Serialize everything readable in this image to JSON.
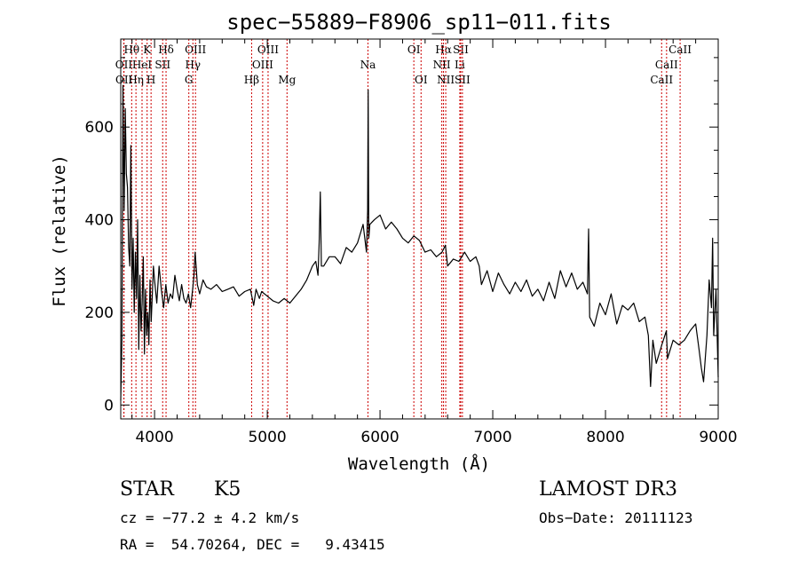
{
  "chart_data": {
    "type": "line",
    "title": "spec−55889−F8906_sp11−011.fits",
    "xlabel": "Wavelength (Å)",
    "ylabel": "Flux (relative)",
    "xlim": [
      3700,
      9000
    ],
    "ylim": [
      -30,
      790
    ],
    "x_ticks": [
      4000,
      5000,
      6000,
      7000,
      8000,
      9000
    ],
    "y_ticks": [
      0,
      200,
      400,
      600
    ],
    "grid": false,
    "legend": "none",
    "series": [
      {
        "x": [
          3700,
          3710,
          3720,
          3730,
          3740,
          3750,
          3760,
          3770,
          3780,
          3790,
          3800,
          3810,
          3820,
          3830,
          3840,
          3850,
          3860,
          3870,
          3880,
          3890,
          3900,
          3910,
          3920,
          3930,
          3940,
          3950,
          3960,
          3970,
          3980,
          3990,
          4000,
          4020,
          4040,
          4060,
          4080,
          4100,
          4120,
          4140,
          4160,
          4180,
          4200,
          4220,
          4240,
          4260,
          4280,
          4300,
          4320,
          4340,
          4350,
          4360,
          4380,
          4400,
          4430,
          4460,
          4500,
          4550,
          4600,
          4650,
          4700,
          4750,
          4800,
          4850,
          4880,
          4900,
          4930,
          4950,
          5000,
          5050,
          5100,
          5150,
          5200,
          5250,
          5300,
          5350,
          5400,
          5430,
          5450,
          5460,
          5470,
          5480,
          5500,
          5550,
          5600,
          5650,
          5700,
          5750,
          5800,
          5850,
          5880,
          5890,
          5895,
          5900,
          5910,
          5950,
          6000,
          6050,
          6100,
          6150,
          6200,
          6250,
          6300,
          6350,
          6400,
          6450,
          6500,
          6550,
          6580,
          6600,
          6650,
          6700,
          6750,
          6800,
          6850,
          6880,
          6900,
          6950,
          7000,
          7050,
          7100,
          7150,
          7200,
          7250,
          7300,
          7350,
          7400,
          7450,
          7500,
          7550,
          7600,
          7650,
          7700,
          7750,
          7800,
          7840,
          7850,
          7860,
          7900,
          7950,
          8000,
          8050,
          8100,
          8150,
          8200,
          8250,
          8300,
          8350,
          8380,
          8400,
          8420,
          8450,
          8500,
          8540,
          8550,
          8600,
          8650,
          8700,
          8750,
          8800,
          8830,
          8850,
          8870,
          8900,
          8920,
          8940,
          8950,
          8960,
          8980,
          9000
        ],
        "y": [
          10,
          140,
          690,
          420,
          640,
          500,
          470,
          340,
          300,
          560,
          250,
          360,
          200,
          330,
          230,
          400,
          120,
          280,
          160,
          220,
          320,
          110,
          250,
          150,
          200,
          130,
          270,
          180,
          240,
          300,
          270,
          220,
          300,
          250,
          210,
          260,
          220,
          240,
          230,
          280,
          250,
          225,
          260,
          230,
          220,
          240,
          210,
          255,
          280,
          330,
          260,
          240,
          270,
          255,
          250,
          260,
          245,
          250,
          255,
          235,
          245,
          250,
          215,
          250,
          230,
          245,
          235,
          225,
          220,
          230,
          220,
          235,
          250,
          270,
          300,
          310,
          280,
          350,
          460,
          300,
          300,
          320,
          320,
          305,
          340,
          330,
          350,
          390,
          330,
          420,
          680,
          360,
          390,
          400,
          410,
          380,
          395,
          380,
          360,
          350,
          365,
          355,
          330,
          335,
          320,
          330,
          345,
          300,
          315,
          310,
          330,
          310,
          320,
          300,
          260,
          290,
          245,
          285,
          260,
          240,
          265,
          245,
          270,
          235,
          250,
          225,
          265,
          230,
          290,
          255,
          285,
          250,
          265,
          240,
          380,
          190,
          170,
          220,
          195,
          240,
          175,
          215,
          205,
          220,
          180,
          190,
          150,
          40,
          140,
          90,
          130,
          160,
          100,
          140,
          130,
          140,
          160,
          175,
          120,
          80,
          50,
          150,
          270,
          210,
          360,
          150,
          250,
          60
        ]
      }
    ],
    "line_labels": [
      {
        "label": "Hθ",
        "x": 3797,
        "row": 0
      },
      {
        "label": "K",
        "x": 3934,
        "row": 0
      },
      {
        "label": "Hδ",
        "x": 4102,
        "row": 0
      },
      {
        "label": "OIII",
        "x": 4363,
        "row": 0
      },
      {
        "label": "OIII",
        "x": 5007,
        "row": 0
      },
      {
        "label": "OI",
        "x": 6300,
        "row": 0
      },
      {
        "label": "Hα",
        "x": 6563,
        "row": 0
      },
      {
        "label": "SII",
        "x": 6716,
        "row": 0
      },
      {
        "label": "CaII",
        "x": 8662,
        "row": 0
      },
      {
        "label": "OII",
        "x": 3727,
        "row": 1
      },
      {
        "label": "HeI",
        "x": 3889,
        "row": 1
      },
      {
        "label": "SII",
        "x": 4072,
        "row": 1
      },
      {
        "label": "Hγ",
        "x": 4340,
        "row": 1
      },
      {
        "label": "OIII",
        "x": 4959,
        "row": 1
      },
      {
        "label": "Na",
        "x": 5893,
        "row": 1
      },
      {
        "label": "NII",
        "x": 6548,
        "row": 1
      },
      {
        "label": "Li",
        "x": 6708,
        "row": 1
      },
      {
        "label": "CaII",
        "x": 8542,
        "row": 1
      },
      {
        "label": "OII",
        "x": 3729,
        "row": 2
      },
      {
        "label": "Hη",
        "x": 3835,
        "row": 2
      },
      {
        "label": "H",
        "x": 3969,
        "row": 2
      },
      {
        "label": "G",
        "x": 4304,
        "row": 2
      },
      {
        "label": "Hβ",
        "x": 4861,
        "row": 2
      },
      {
        "label": "Mg",
        "x": 5175,
        "row": 2
      },
      {
        "label": "OI",
        "x": 6364,
        "row": 2
      },
      {
        "label": "NII",
        "x": 6583,
        "row": 2
      },
      {
        "label": "SII",
        "x": 6731,
        "row": 2
      },
      {
        "label": "CaII",
        "x": 8498,
        "row": 2
      }
    ]
  },
  "info": {
    "class": "STAR",
    "subclass": "K5",
    "survey": "LAMOST DR3",
    "cz": "cz = −77.2 ± 4.2 km/s",
    "obs_date": "Obs−Date: 20111123",
    "coords": "RA =  54.70264, DEC =   9.43415"
  },
  "colors": {
    "spectrum": "#000000",
    "line_markers": "#cc0000"
  }
}
